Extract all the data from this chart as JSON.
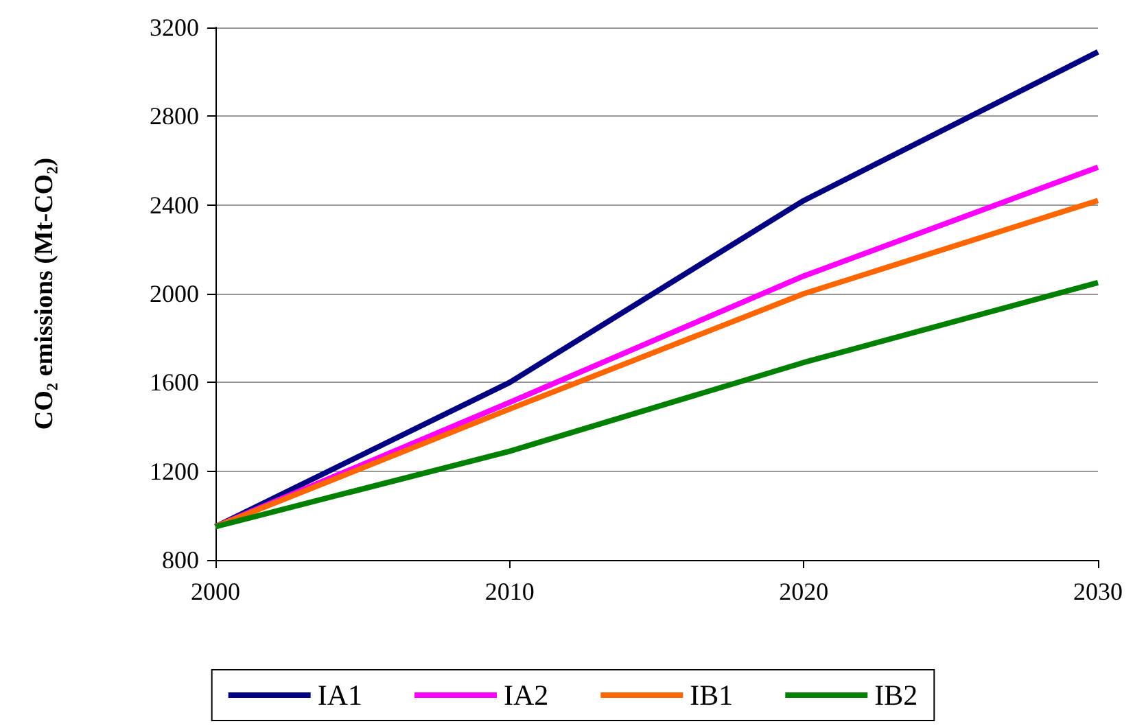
{
  "chart_data": {
    "type": "line",
    "ylabel": "CO₂ emissions (Mt-CO₂)",
    "x": [
      2000,
      2010,
      2020,
      2030
    ],
    "series": [
      {
        "name": "IA1",
        "color": "#000080",
        "values": [
          950,
          1600,
          2420,
          3090
        ]
      },
      {
        "name": "IA2",
        "color": "#ff00ff",
        "values": [
          950,
          1510,
          2080,
          2570
        ]
      },
      {
        "name": "IB1",
        "color": "#ff6600",
        "values": [
          950,
          1480,
          2000,
          2420
        ]
      },
      {
        "name": "IB2",
        "color": "#008000",
        "values": [
          950,
          1290,
          1690,
          2050
        ]
      }
    ],
    "xlim": [
      2000,
      2030
    ],
    "xticks": [
      2000,
      2010,
      2020,
      2030
    ],
    "ylim": [
      800,
      3200
    ],
    "yticks": [
      800,
      1200,
      1600,
      2000,
      2400,
      2800,
      3200
    ],
    "grid": "y",
    "legend": "bottom",
    "marker": "none",
    "line_style": "solid"
  }
}
